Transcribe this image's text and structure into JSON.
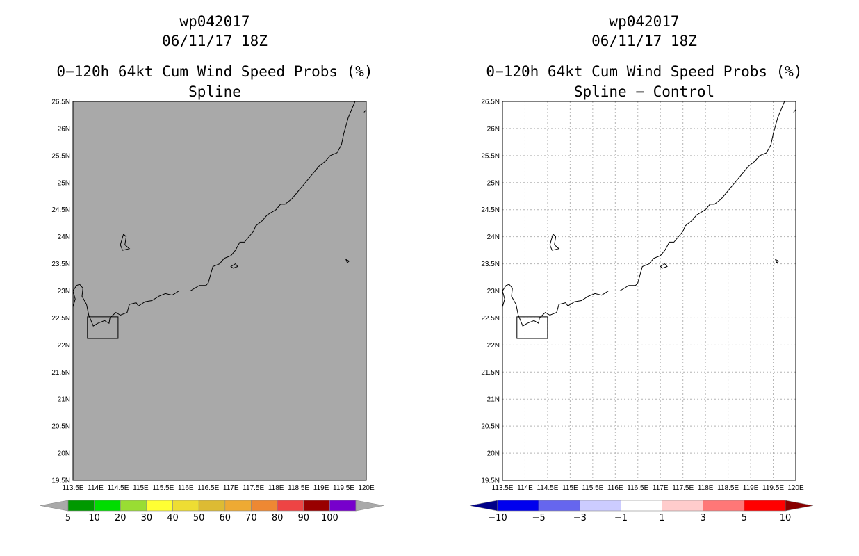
{
  "panels": [
    {
      "id": "left",
      "storm_id": "wp042017",
      "datetime": "06/11/17 18Z",
      "product": "0−120h 64kt Cum Wind Speed Probs (%)",
      "subtitle": "Spline",
      "plot_bg": "#a9a9a9",
      "gridlines": false,
      "colorbar": {
        "labels": [
          "5",
          "10",
          "20",
          "30",
          "40",
          "50",
          "60",
          "70",
          "80",
          "90",
          "100"
        ],
        "colors": [
          "#009900",
          "#00dd00",
          "#99dd33",
          "#ffff33",
          "#eedd33",
          "#ddbb33",
          "#eeaa33",
          "#ee8833",
          "#ee4444",
          "#990000",
          "#7700cc"
        ],
        "under_color": "#a9a9a9",
        "over_color": "#a9a9a9"
      }
    },
    {
      "id": "right",
      "storm_id": "wp042017",
      "datetime": "06/11/17 18Z",
      "product": "0−120h 64kt Cum Wind Speed Probs (%)",
      "subtitle": "Spline − Control",
      "plot_bg": "#ffffff",
      "gridlines": true,
      "colorbar": {
        "labels": [
          "−10",
          "−5",
          "−3",
          "−1",
          "1",
          "3",
          "5",
          "10"
        ],
        "colors": [
          "#0000ee",
          "#6666ee",
          "#ccccff",
          "#ffffff",
          "#ffcccc",
          "#ff7777",
          "#ff0000"
        ],
        "under_color": "#000088",
        "over_color": "#880000"
      }
    }
  ],
  "axes": {
    "lon_ticks": [
      "113.5E",
      "114E",
      "114.5E",
      "115E",
      "115.5E",
      "116E",
      "116.5E",
      "117E",
      "117.5E",
      "118E",
      "118.5E",
      "119E",
      "119.5E",
      "120E"
    ],
    "lat_ticks": [
      "26.5N",
      "26N",
      "25.5N",
      "25N",
      "24.5N",
      "24N",
      "23.5N",
      "23N",
      "22.5N",
      "22N",
      "21.5N",
      "21N",
      "20.5N",
      "20N",
      "19.5N"
    ],
    "lon_range": [
      113.5,
      120.0
    ],
    "lat_range": [
      19.5,
      26.5
    ]
  },
  "coastline": [
    [
      113.5,
      22.7
    ],
    [
      113.55,
      22.85
    ],
    [
      113.5,
      23.0
    ],
    [
      113.58,
      23.1
    ],
    [
      113.65,
      23.12
    ],
    [
      113.72,
      23.05
    ],
    [
      113.7,
      22.9
    ],
    [
      113.8,
      22.75
    ],
    [
      113.85,
      22.55
    ],
    [
      113.9,
      22.45
    ],
    [
      113.95,
      22.35
    ],
    [
      114.05,
      22.4
    ],
    [
      114.2,
      22.45
    ],
    [
      114.3,
      22.4
    ],
    [
      114.32,
      22.5
    ],
    [
      114.45,
      22.6
    ],
    [
      114.55,
      22.55
    ],
    [
      114.7,
      22.6
    ],
    [
      114.75,
      22.75
    ],
    [
      114.9,
      22.78
    ],
    [
      114.95,
      22.72
    ],
    [
      115.1,
      22.8
    ],
    [
      115.25,
      22.82
    ],
    [
      115.4,
      22.9
    ],
    [
      115.55,
      22.95
    ],
    [
      115.7,
      22.92
    ],
    [
      115.85,
      23.0
    ],
    [
      116.1,
      23.0
    ],
    [
      116.3,
      23.1
    ],
    [
      116.45,
      23.1
    ],
    [
      116.5,
      23.15
    ],
    [
      116.55,
      23.3
    ],
    [
      116.6,
      23.45
    ],
    [
      116.75,
      23.5
    ],
    [
      116.85,
      23.6
    ],
    [
      117.0,
      23.65
    ],
    [
      117.1,
      23.75
    ],
    [
      117.2,
      23.9
    ],
    [
      117.3,
      23.9
    ],
    [
      117.5,
      24.1
    ],
    [
      117.55,
      24.2
    ],
    [
      117.7,
      24.3
    ],
    [
      117.8,
      24.4
    ],
    [
      117.9,
      24.45
    ],
    [
      118.0,
      24.5
    ],
    [
      118.1,
      24.6
    ],
    [
      118.2,
      24.6
    ],
    [
      118.35,
      24.7
    ],
    [
      118.5,
      24.85
    ],
    [
      118.6,
      24.95
    ],
    [
      118.7,
      25.05
    ],
    [
      118.85,
      25.2
    ],
    [
      118.95,
      25.3
    ],
    [
      119.1,
      25.4
    ],
    [
      119.2,
      25.5
    ],
    [
      119.35,
      25.55
    ],
    [
      119.45,
      25.7
    ],
    [
      119.5,
      25.9
    ],
    [
      119.55,
      26.05
    ],
    [
      119.6,
      26.2
    ],
    [
      119.7,
      26.4
    ],
    [
      119.75,
      26.5
    ]
  ],
  "island_taiwan": [
    [
      119.95,
      26.3
    ],
    [
      120.0,
      26.35
    ]
  ],
  "island_nanao": [
    [
      117.0,
      23.45
    ],
    [
      117.1,
      23.5
    ],
    [
      117.15,
      23.45
    ],
    [
      117.05,
      23.42
    ],
    [
      117.0,
      23.45
    ]
  ],
  "island_penghu": [
    [
      119.55,
      23.58
    ],
    [
      119.62,
      23.55
    ],
    [
      119.58,
      23.52
    ],
    [
      119.55,
      23.58
    ]
  ],
  "island_small": [
    [
      114.55,
      23.85
    ],
    [
      114.62,
      24.05
    ],
    [
      114.68,
      24.0
    ],
    [
      114.65,
      23.85
    ],
    [
      114.75,
      23.78
    ],
    [
      114.6,
      23.75
    ],
    [
      114.55,
      23.85
    ]
  ],
  "hk_box": [
    [
      113.82,
      22.52
    ],
    [
      114.5,
      22.52
    ],
    [
      114.5,
      22.12
    ],
    [
      113.82,
      22.12
    ]
  ]
}
